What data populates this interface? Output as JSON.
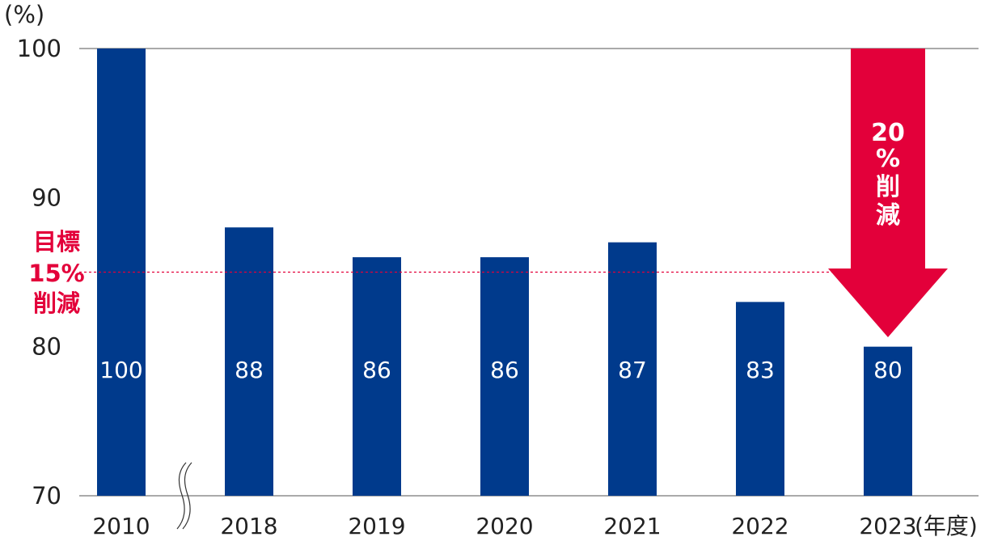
{
  "chart_data": {
    "type": "bar",
    "categories": [
      "2010",
      "2018",
      "2019",
      "2020",
      "2021",
      "2022",
      "2023"
    ],
    "values": [
      100,
      88,
      86,
      86,
      87,
      83,
      80
    ],
    "value_labels": [
      "100",
      "88",
      "86",
      "86",
      "87",
      "83",
      "80"
    ],
    "ylabel": "(%)",
    "xunit": "(年度)",
    "ylim": [
      70,
      100
    ],
    "yticks": [
      "70",
      "80",
      "90",
      "100"
    ],
    "target": {
      "value": 85,
      "label_lines": [
        "目標",
        "15%",
        "削減"
      ]
    },
    "reduction_arrow": {
      "label_lines": [
        "20",
        "%",
        "削",
        "減"
      ]
    },
    "axis_break_between": [
      "2010",
      "2018"
    ],
    "grid": false,
    "colors": {
      "bar": "#003a8c",
      "target": "#e3003a",
      "arrow": "#e3003a",
      "axis": "#555555"
    }
  }
}
